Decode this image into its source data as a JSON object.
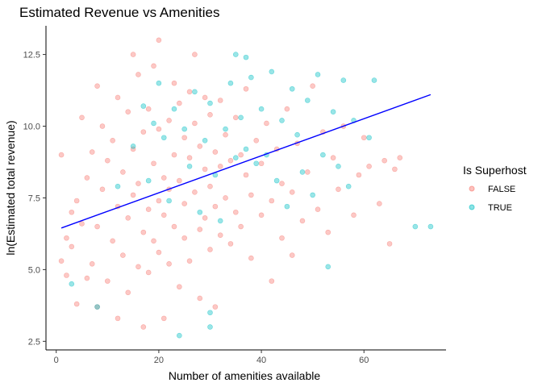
{
  "chart_data": {
    "type": "scatter",
    "title": "Estimated Revenue vs Amenities",
    "xlabel": "Number of amenities available",
    "ylabel": "ln(Estimated total revenue)",
    "xlim": [
      -2,
      76
    ],
    "ylim": [
      2.2,
      13.5
    ],
    "x_ticks": [
      0,
      20,
      40,
      60
    ],
    "y_ticks": [
      2.5,
      5.0,
      7.5,
      10.0,
      12.5
    ],
    "x_tick_labels": [
      "0",
      "20",
      "40",
      "60"
    ],
    "y_tick_labels": [
      "2.5",
      "5.0",
      "7.5",
      "10.0",
      "12.5"
    ],
    "grid": false,
    "legend": {
      "title": "Is Superhost",
      "position": "right",
      "entries": [
        {
          "label": "FALSE",
          "color": "#F8766D"
        },
        {
          "label": "TRUE",
          "color": "#00BFC4"
        }
      ]
    },
    "series": [
      {
        "name": "FALSE",
        "color": "#F8766D",
        "points": [
          [
            1,
            9.0
          ],
          [
            1,
            5.3
          ],
          [
            2,
            6.1
          ],
          [
            2,
            4.8
          ],
          [
            3,
            7.0
          ],
          [
            3,
            5.8
          ],
          [
            4,
            7.4
          ],
          [
            4,
            3.8
          ],
          [
            5,
            10.3
          ],
          [
            5,
            6.6
          ],
          [
            6,
            8.2
          ],
          [
            6,
            4.7
          ],
          [
            7,
            9.1
          ],
          [
            7,
            5.2
          ],
          [
            8,
            11.4
          ],
          [
            8,
            6.5
          ],
          [
            8,
            3.7
          ],
          [
            9,
            7.8
          ],
          [
            9,
            10.0
          ],
          [
            10,
            4.6
          ],
          [
            10,
            8.8
          ],
          [
            11,
            6.0
          ],
          [
            11,
            9.5
          ],
          [
            12,
            7.2
          ],
          [
            12,
            3.3
          ],
          [
            12,
            11.0
          ],
          [
            13,
            5.5
          ],
          [
            13,
            8.4
          ],
          [
            14,
            6.8
          ],
          [
            14,
            10.5
          ],
          [
            14,
            4.2
          ],
          [
            15,
            7.6
          ],
          [
            15,
            9.2
          ],
          [
            15,
            12.5
          ],
          [
            16,
            5.1
          ],
          [
            16,
            8.0
          ],
          [
            16,
            11.8
          ],
          [
            17,
            6.3
          ],
          [
            17,
            9.8
          ],
          [
            17,
            3.0
          ],
          [
            18,
            7.1
          ],
          [
            18,
            10.6
          ],
          [
            18,
            4.9
          ],
          [
            19,
            8.7
          ],
          [
            19,
            6.0
          ],
          [
            19,
            12.1
          ],
          [
            20,
            7.4
          ],
          [
            20,
            9.9
          ],
          [
            20,
            5.6
          ],
          [
            20,
            13.0
          ],
          [
            21,
            8.2
          ],
          [
            21,
            6.9
          ],
          [
            21,
            3.3
          ],
          [
            22,
            10.2
          ],
          [
            22,
            7.8
          ],
          [
            22,
            5.2
          ],
          [
            23,
            9.0
          ],
          [
            23,
            6.5
          ],
          [
            23,
            11.5
          ],
          [
            24,
            8.1
          ],
          [
            24,
            4.4
          ],
          [
            24,
            10.8
          ],
          [
            25,
            7.3
          ],
          [
            25,
            9.6
          ],
          [
            25,
            6.1
          ],
          [
            26,
            8.9
          ],
          [
            26,
            11.2
          ],
          [
            26,
            5.3
          ],
          [
            27,
            7.7
          ],
          [
            27,
            10.1
          ],
          [
            27,
            12.5
          ],
          [
            28,
            6.4
          ],
          [
            28,
            9.3
          ],
          [
            28,
            4.0
          ],
          [
            29,
            8.5
          ],
          [
            29,
            11.0
          ],
          [
            29,
            6.8
          ],
          [
            30,
            7.9
          ],
          [
            30,
            10.4
          ],
          [
            30,
            5.7
          ],
          [
            31,
            9.1
          ],
          [
            31,
            7.2
          ],
          [
            31,
            3.7
          ],
          [
            32,
            8.6
          ],
          [
            32,
            10.9
          ],
          [
            32,
            6.2
          ],
          [
            33,
            7.5
          ],
          [
            33,
            9.7
          ],
          [
            34,
            8.8
          ],
          [
            34,
            5.9
          ],
          [
            35,
            10.3
          ],
          [
            35,
            7.0
          ],
          [
            36,
            9.0
          ],
          [
            36,
            6.5
          ],
          [
            37,
            8.3
          ],
          [
            37,
            11.3
          ],
          [
            38,
            7.6
          ],
          [
            38,
            5.4
          ],
          [
            39,
            9.5
          ],
          [
            40,
            6.9
          ],
          [
            40,
            8.7
          ],
          [
            41,
            10.1
          ],
          [
            42,
            7.4
          ],
          [
            42,
            4.6
          ],
          [
            43,
            9.2
          ],
          [
            44,
            6.1
          ],
          [
            44,
            8.0
          ],
          [
            45,
            10.6
          ],
          [
            46,
            7.7
          ],
          [
            46,
            5.5
          ],
          [
            47,
            9.4
          ],
          [
            48,
            6.7
          ],
          [
            49,
            8.4
          ],
          [
            50,
            11.4
          ],
          [
            51,
            7.1
          ],
          [
            52,
            9.8
          ],
          [
            53,
            6.3
          ],
          [
            54,
            8.9
          ],
          [
            55,
            7.8
          ],
          [
            56,
            10.0
          ],
          [
            58,
            6.9
          ],
          [
            59,
            8.3
          ],
          [
            60,
            9.6
          ],
          [
            61,
            8.6
          ],
          [
            63,
            7.3
          ],
          [
            64,
            8.8
          ],
          [
            65,
            5.9
          ],
          [
            66,
            8.5
          ],
          [
            67,
            8.9
          ]
        ]
      },
      {
        "name": "TRUE",
        "color": "#00BFC4",
        "points": [
          [
            3,
            4.5
          ],
          [
            8,
            3.7
          ],
          [
            12,
            7.9
          ],
          [
            15,
            9.3
          ],
          [
            17,
            10.7
          ],
          [
            18,
            8.1
          ],
          [
            19,
            10.1
          ],
          [
            20,
            11.5
          ],
          [
            21,
            9.6
          ],
          [
            22,
            7.4
          ],
          [
            23,
            10.6
          ],
          [
            24,
            2.7
          ],
          [
            25,
            9.9
          ],
          [
            26,
            8.6
          ],
          [
            27,
            11.2
          ],
          [
            28,
            7.0
          ],
          [
            29,
            9.5
          ],
          [
            30,
            3.0
          ],
          [
            30,
            3.5
          ],
          [
            30,
            10.8
          ],
          [
            31,
            8.3
          ],
          [
            32,
            6.7
          ],
          [
            33,
            9.9
          ],
          [
            34,
            11.5
          ],
          [
            35,
            8.9
          ],
          [
            35,
            12.5
          ],
          [
            36,
            10.3
          ],
          [
            37,
            9.2
          ],
          [
            37,
            12.4
          ],
          [
            38,
            11.7
          ],
          [
            39,
            8.7
          ],
          [
            40,
            10.6
          ],
          [
            41,
            9.0
          ],
          [
            42,
            11.9
          ],
          [
            43,
            8.1
          ],
          [
            44,
            10.2
          ],
          [
            45,
            7.2
          ],
          [
            46,
            11.3
          ],
          [
            47,
            9.7
          ],
          [
            48,
            8.4
          ],
          [
            49,
            10.9
          ],
          [
            50,
            7.6
          ],
          [
            51,
            11.8
          ],
          [
            52,
            9.0
          ],
          [
            53,
            5.1
          ],
          [
            54,
            10.5
          ],
          [
            55,
            8.6
          ],
          [
            56,
            11.6
          ],
          [
            57,
            7.9
          ],
          [
            58,
            10.2
          ],
          [
            61,
            9.6
          ],
          [
            62,
            11.6
          ],
          [
            70,
            6.5
          ],
          [
            73,
            6.5
          ]
        ]
      }
    ],
    "trend_line": {
      "color": "#0000FF",
      "x": [
        1,
        73
      ],
      "y": [
        6.45,
        11.1
      ]
    }
  }
}
